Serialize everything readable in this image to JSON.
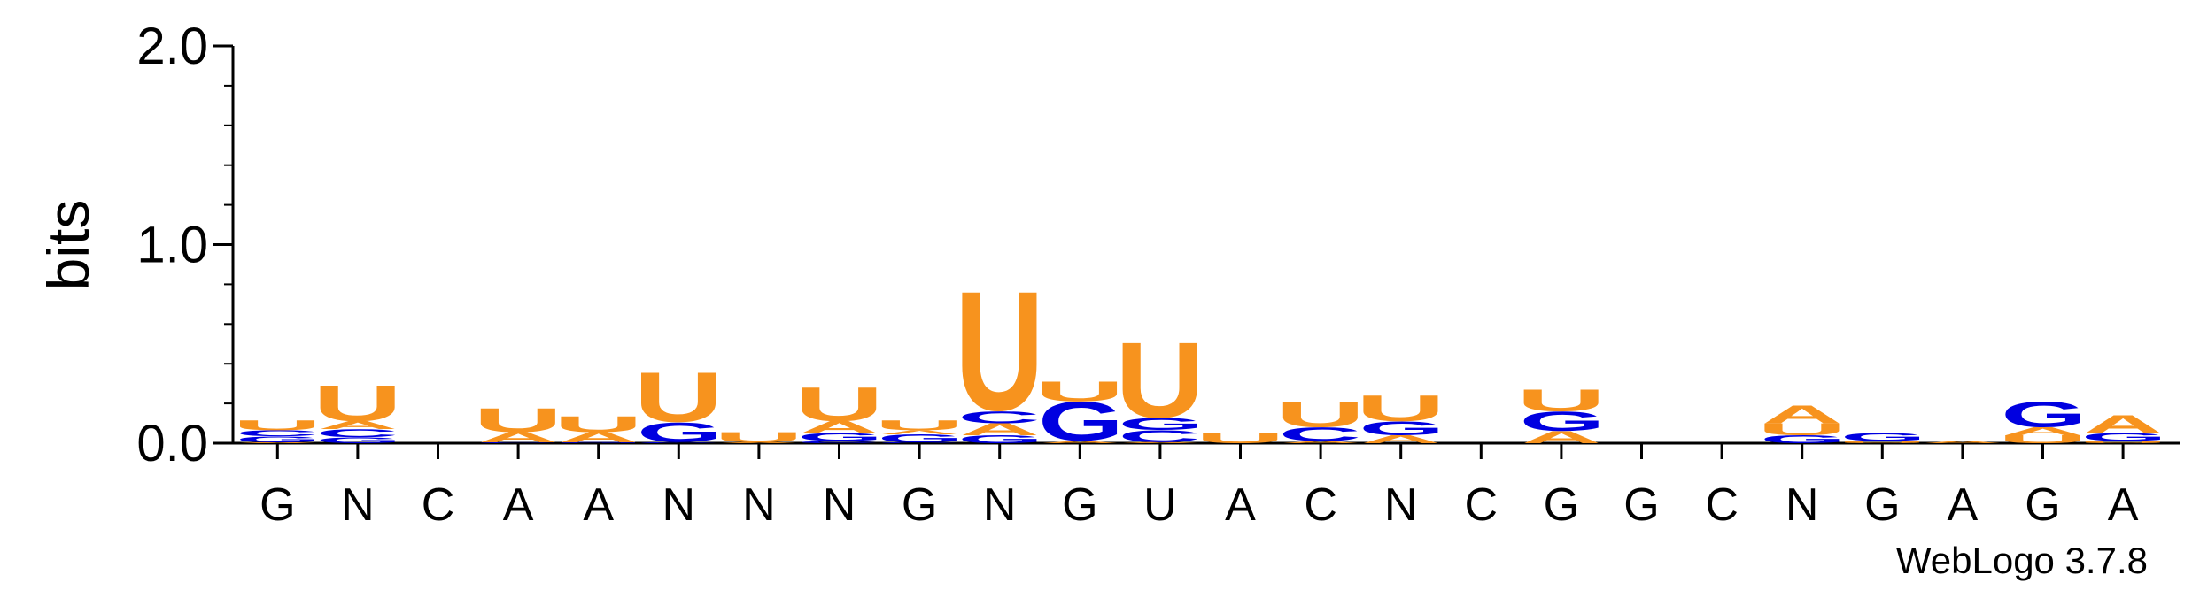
{
  "chart_data": {
    "type": "sequence-logo",
    "ylabel": "bits",
    "ylim": [
      0,
      2.0
    ],
    "yticks": [
      {
        "value": 0.0,
        "label": "0.0"
      },
      {
        "value": 1.0,
        "label": "1.0"
      },
      {
        "value": 2.0,
        "label": "2.0"
      }
    ],
    "colors": {
      "A": "#f7931e",
      "U": "#f7931e",
      "G": "#0000e0",
      "C": "#0000e0"
    },
    "positions": [
      {
        "label": "G",
        "stack": [
          [
            "A",
            0.005
          ],
          [
            "G",
            0.03
          ],
          [
            "C",
            0.03
          ],
          [
            "U",
            0.05
          ]
        ]
      },
      {
        "label": "N",
        "stack": [
          [
            "G",
            0.03
          ],
          [
            "C",
            0.04
          ],
          [
            "A",
            0.04
          ],
          [
            "U",
            0.18
          ]
        ]
      },
      {
        "label": "C",
        "stack": []
      },
      {
        "label": "A",
        "stack": [
          [
            "C",
            0.005
          ],
          [
            "A",
            0.05
          ],
          [
            "U",
            0.12
          ]
        ]
      },
      {
        "label": "A",
        "stack": [
          [
            "G",
            0.005
          ],
          [
            "A",
            0.05
          ],
          [
            "U",
            0.08
          ]
        ]
      },
      {
        "label": "N",
        "stack": [
          [
            "C",
            0.005
          ],
          [
            "G",
            0.1
          ],
          [
            "U",
            0.25
          ]
        ]
      },
      {
        "label": "N",
        "stack": [
          [
            "A",
            0.005
          ],
          [
            "U",
            0.05
          ]
        ]
      },
      {
        "label": "N",
        "stack": [
          [
            "C",
            0.01
          ],
          [
            "G",
            0.04
          ],
          [
            "A",
            0.06
          ],
          [
            "U",
            0.17
          ]
        ]
      },
      {
        "label": "G",
        "stack": [
          [
            "C",
            0.005
          ],
          [
            "G",
            0.04
          ],
          [
            "A",
            0.02
          ],
          [
            "U",
            0.05
          ]
        ]
      },
      {
        "label": "N",
        "stack": [
          [
            "G",
            0.04
          ],
          [
            "A",
            0.06
          ],
          [
            "C",
            0.06
          ],
          [
            "U",
            0.6
          ]
        ]
      },
      {
        "label": "G",
        "stack": [
          [
            "A",
            0.01
          ],
          [
            "G",
            0.2
          ],
          [
            "U",
            0.1
          ]
        ]
      },
      {
        "label": "U",
        "stack": [
          [
            "A",
            0.005
          ],
          [
            "C",
            0.06
          ],
          [
            "G",
            0.06
          ],
          [
            "U",
            0.38
          ]
        ]
      },
      {
        "label": "A",
        "stack": [
          [
            "U",
            0.05
          ]
        ]
      },
      {
        "label": "C",
        "stack": [
          [
            "A",
            0.01
          ],
          [
            "C",
            0.07
          ],
          [
            "U",
            0.13
          ]
        ]
      },
      {
        "label": "N",
        "stack": [
          [
            "A",
            0.04
          ],
          [
            "G",
            0.07
          ],
          [
            "U",
            0.13
          ]
        ]
      },
      {
        "label": "C",
        "stack": []
      },
      {
        "label": "G",
        "stack": [
          [
            "A",
            0.06
          ],
          [
            "G",
            0.1
          ],
          [
            "U",
            0.11
          ]
        ]
      },
      {
        "label": "G",
        "stack": []
      },
      {
        "label": "C",
        "stack": []
      },
      {
        "label": "N",
        "stack": [
          [
            "G",
            0.04
          ],
          [
            "U",
            0.06
          ],
          [
            "A",
            0.09
          ]
        ]
      },
      {
        "label": "G",
        "stack": [
          [
            "U",
            0.01
          ],
          [
            "G",
            0.04
          ]
        ]
      },
      {
        "label": "A",
        "stack": [
          [
            "A",
            0.01
          ]
        ]
      },
      {
        "label": "G",
        "stack": [
          [
            "U",
            0.04
          ],
          [
            "A",
            0.04
          ],
          [
            "G",
            0.13
          ]
        ]
      },
      {
        "label": "A",
        "stack": [
          [
            "U",
            0.01
          ],
          [
            "G",
            0.04
          ],
          [
            "A",
            0.09
          ]
        ]
      }
    ],
    "credit": "WebLogo 3.7.8"
  }
}
